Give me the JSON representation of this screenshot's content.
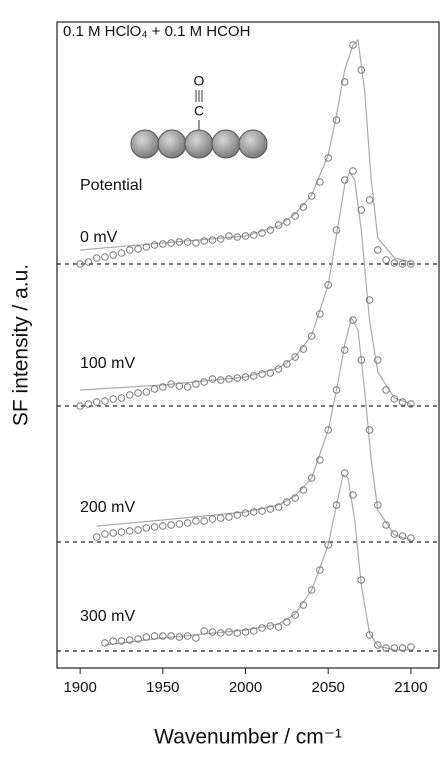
{
  "chart_data": {
    "type": "scatter",
    "title": "0.1 M HClO₄ + 0.1 M HCOH",
    "x_label": "Wavenumber / cm⁻¹",
    "y_label": "SF intensity / a.u.",
    "annotation": "Potential",
    "molecule": [
      "O",
      "C"
    ],
    "xlim": [
      1886,
      2117
    ],
    "ylim": [
      0,
      646
    ],
    "xticks": [
      1900,
      1950,
      2000,
      2050,
      2100
    ],
    "x": [
      1900,
      1905,
      1910,
      1915,
      1920,
      1925,
      1930,
      1935,
      1940,
      1945,
      1950,
      1955,
      1960,
      1965,
      1970,
      1975,
      1980,
      1985,
      1990,
      1995,
      2000,
      2005,
      2010,
      2015,
      2020,
      2025,
      2030,
      2035,
      2040,
      2045,
      2050,
      2055,
      2060,
      2065,
      2070,
      2075,
      2080,
      2085,
      2090,
      2095,
      2100
    ],
    "marker_color": "#777777",
    "fit_color": "#aaaaaa",
    "baseline_color": "#222222",
    "series": [
      {
        "name": "0 mV",
        "baseline": 404,
        "values": [
          404,
          406,
          410,
          411,
          413,
          415,
          418,
          419,
          421,
          423,
          424,
          425,
          426,
          426,
          425,
          427,
          428,
          429,
          432,
          431,
          432,
          433,
          435,
          438,
          443,
          446,
          452,
          461,
          472,
          486,
          510,
          548,
          586,
          623,
          598,
          468,
          418,
          408,
          405,
          404,
          404
        ],
        "fit_x": [
          1900,
          1950,
          2000,
          2020,
          2030,
          2040,
          2050,
          2055,
          2060,
          2065,
          2068,
          2072,
          2076,
          2080,
          2090,
          2100
        ],
        "fit": [
          418,
          425,
          432,
          442,
          454,
          473,
          513,
          553,
          598,
          623,
          628,
          578,
          488,
          430,
          410,
          406
        ]
      },
      {
        "name": "100 mV",
        "baseline": 262,
        "values": [
          262,
          264,
          266,
          267,
          269,
          270,
          273,
          275,
          276,
          279,
          281,
          284,
          282,
          281,
          284,
          286,
          289,
          288,
          289,
          290,
          291,
          292,
          294,
          295,
          299,
          304,
          311,
          319,
          332,
          354,
          383,
          438,
          488,
          497,
          458,
          368,
          308,
          278,
          269,
          266,
          264
        ],
        "fit_x": [
          1900,
          1950,
          2000,
          2020,
          2030,
          2040,
          2050,
          2055,
          2060,
          2063,
          2066,
          2070,
          2075,
          2080,
          2090,
          2100
        ],
        "fit": [
          278,
          283,
          291,
          300,
          311,
          333,
          383,
          433,
          483,
          496,
          488,
          438,
          348,
          296,
          270,
          264
        ]
      },
      {
        "name": "200 mV",
        "baseline": 126,
        "values": [
          null,
          null,
          131,
          134,
          135,
          136,
          137,
          138,
          140,
          141,
          142,
          143,
          144,
          145,
          147,
          147,
          149,
          150,
          151,
          153,
          155,
          156,
          157,
          159,
          161,
          166,
          170,
          178,
          190,
          208,
          238,
          278,
          318,
          348,
          308,
          238,
          163,
          143,
          134,
          132,
          130
        ],
        "fit_x": [
          1910,
          1950,
          2000,
          2020,
          2030,
          2040,
          2050,
          2055,
          2060,
          2064,
          2068,
          2072,
          2076,
          2080,
          2090,
          2100
        ],
        "fit": [
          142,
          148,
          156,
          163,
          172,
          190,
          238,
          278,
          323,
          350,
          338,
          278,
          208,
          158,
          133,
          128
        ]
      },
      {
        "name": "300 mV",
        "baseline": 17,
        "values": [
          null,
          null,
          null,
          25,
          27,
          27,
          28,
          29,
          31,
          32,
          32,
          32,
          31,
          32,
          30,
          37,
          36,
          35,
          36,
          35,
          36,
          37,
          40,
          42,
          41,
          46,
          53,
          63,
          78,
          98,
          123,
          163,
          195,
          173,
          88,
          33,
          23,
          20,
          20,
          20,
          21
        ],
        "fit_x": [
          1915,
          1950,
          2000,
          2020,
          2030,
          2040,
          2050,
          2055,
          2059,
          2062,
          2066,
          2070,
          2075,
          2080,
          2090,
          2100
        ],
        "fit": [
          23,
          30,
          38,
          44,
          54,
          78,
          123,
          163,
          193,
          190,
          148,
          83,
          35,
          22,
          18,
          18
        ]
      }
    ]
  }
}
